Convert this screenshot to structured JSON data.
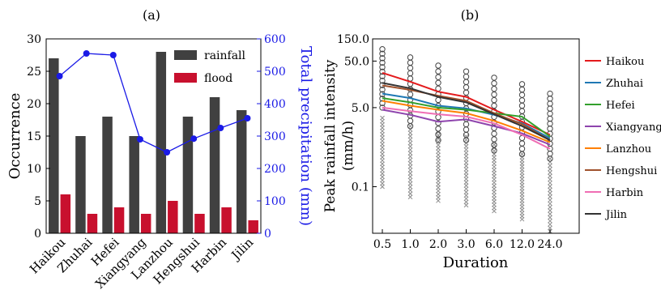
{
  "chart_data": [
    {
      "panel_label": "(a)",
      "type": "bar",
      "categories": [
        "Haikou",
        "Zhuhai",
        "Hefei",
        "Xiangyang",
        "Lanzhou",
        "Hengshui",
        "Harbin",
        "Jilin"
      ],
      "series": [
        {
          "name": "rainfall",
          "values": [
            27,
            15,
            18,
            15,
            28,
            18,
            21,
            19
          ],
          "color": "#404040"
        },
        {
          "name": "flood",
          "values": [
            6,
            3,
            4,
            3,
            5,
            3,
            4,
            2
          ],
          "color": "#c8102e"
        }
      ],
      "line_series": {
        "values": [
          485,
          555,
          550,
          290,
          250,
          292,
          325,
          355
        ],
        "color": "#1a1ae6",
        "marker": "circle"
      },
      "ylabel": "Occurrence",
      "ylim": [
        0,
        30
      ],
      "yticks": [
        "0",
        "5",
        "10",
        "15",
        "20",
        "25",
        "30"
      ],
      "y2label": "Total precipitation (mm)",
      "y2lim": [
        0,
        600
      ],
      "y2ticks": [
        "0",
        "100",
        "200",
        "300",
        "400",
        "500",
        "600"
      ],
      "y2color": "#1a1ae6",
      "legend": "top-right"
    },
    {
      "panel_label": "(b)",
      "type": "line",
      "x": [
        0.5,
        1.0,
        2.0,
        3.0,
        6.0,
        12.0,
        24.0
      ],
      "xticks": [
        "0.5",
        "1.0",
        "2.0",
        "3.0",
        "6.0",
        "12.0",
        "24.0"
      ],
      "xlabel": "Duration",
      "ylabel": "Peak rainfall intensity (mm/h)",
      "yscale": "log",
      "yticks": [
        "0.1",
        "5.0",
        "50.0",
        "150.0"
      ],
      "ylim": [
        0.01,
        150
      ],
      "series": [
        {
          "name": "Haikou",
          "color": "#e41a1c",
          "values": [
            28,
            18,
            11,
            8.5,
            4.5,
            2.5,
            1.3
          ]
        },
        {
          "name": "Zhuhai",
          "color": "#1f78b4",
          "values": [
            10,
            8,
            5.5,
            4.8,
            3.5,
            2.3,
            1.1
          ]
        },
        {
          "name": "Hefei",
          "color": "#33a02c",
          "values": [
            8,
            6.5,
            5,
            4.5,
            3.8,
            3.2,
            1.2
          ]
        },
        {
          "name": "Xiangyang",
          "color": "#8e44ad",
          "values": [
            4.5,
            3.5,
            2.5,
            2.8,
            2.0,
            1.4,
            0.8
          ]
        },
        {
          "name": "Lanzhou",
          "color": "#ff7f00",
          "values": [
            7,
            5.5,
            4.5,
            3.8,
            2.6,
            1.6,
            0.9
          ]
        },
        {
          "name": "Hengshui",
          "color": "#a0522d",
          "values": [
            15,
            12,
            9,
            7,
            3.8,
            2.2,
            1.0
          ]
        },
        {
          "name": "Harbin",
          "color": "#f06eb4",
          "values": [
            5,
            4.2,
            3.6,
            3.2,
            2.3,
            1.3,
            0.65
          ]
        },
        {
          "name": "Jilin",
          "color": "#333333",
          "values": [
            17,
            13,
            8.5,
            6.5,
            3.6,
            2.0,
            1.0
          ]
        }
      ],
      "scatter_circles_max": [
        90,
        60,
        40,
        30,
        22,
        16,
        10
      ],
      "scatter_circles_min": [
        5,
        2,
        1,
        1,
        0.6,
        0.5,
        0.4
      ],
      "scatter_crosses_max": [
        3,
        2,
        1.5,
        1.2,
        0.8,
        0.5,
        0.4
      ],
      "scatter_crosses_min": [
        0.1,
        0.06,
        0.05,
        0.04,
        0.03,
        0.02,
        0.011
      ],
      "legend": "right"
    }
  ]
}
